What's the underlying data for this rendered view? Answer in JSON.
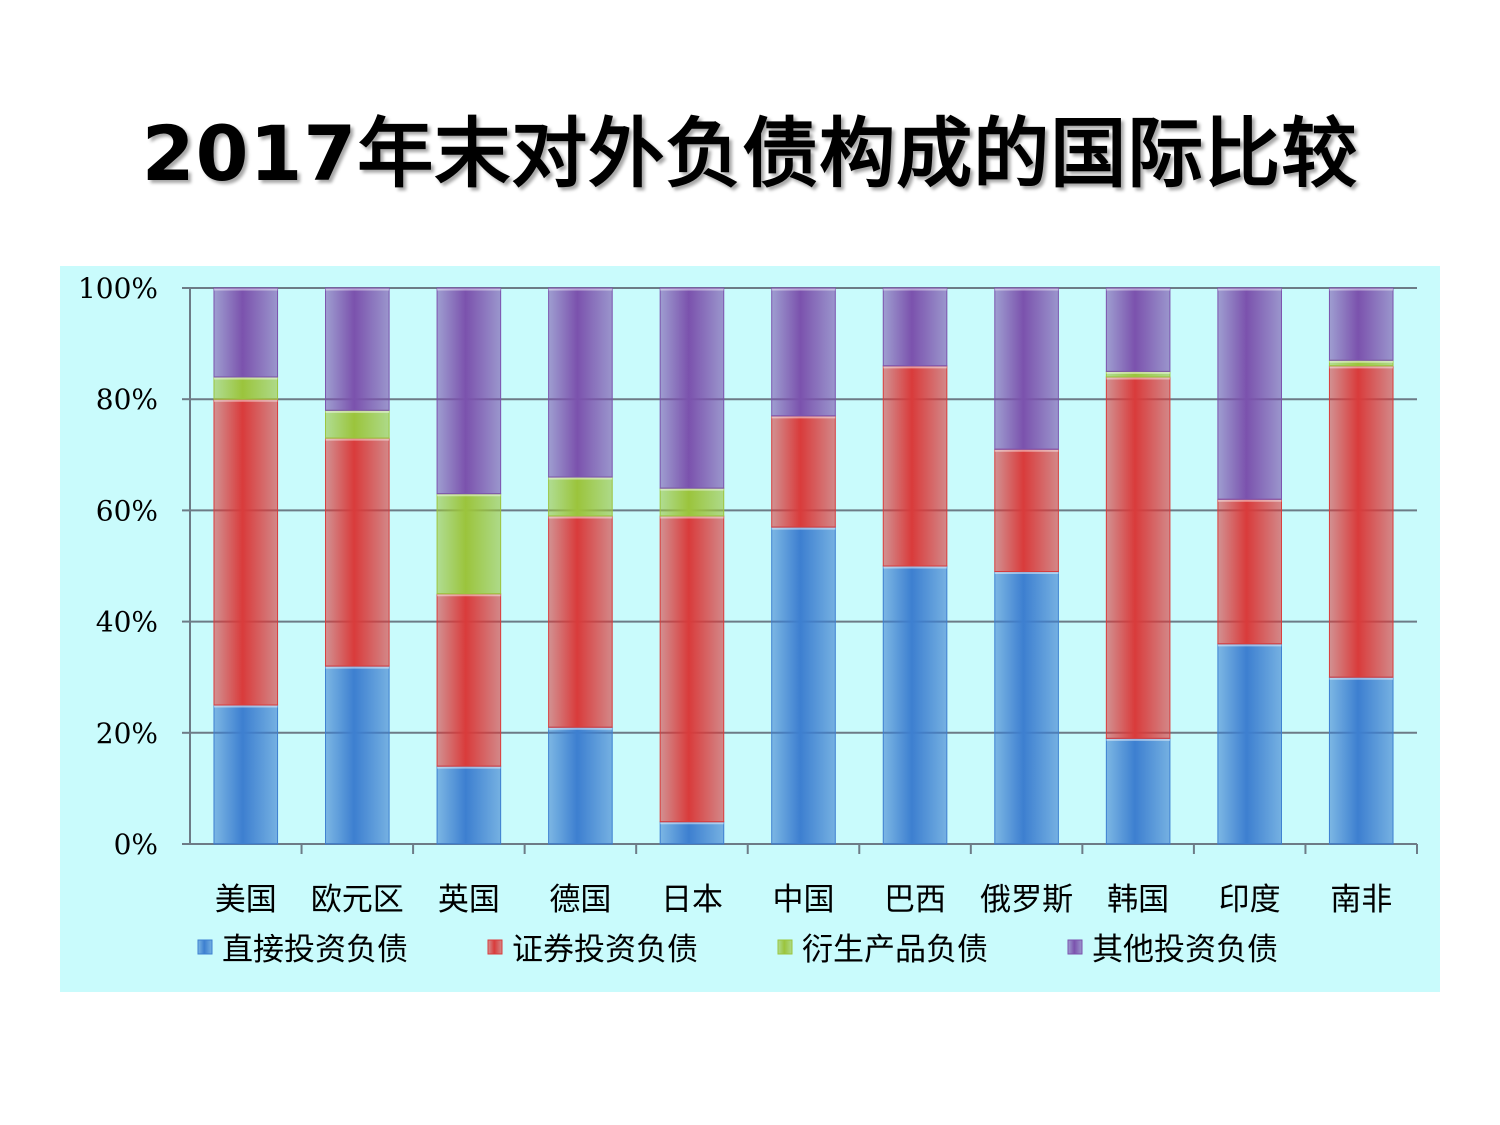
{
  "title": "2017年末对外负债构成的国际比较",
  "chart_data": {
    "type": "bar",
    "stacked": true,
    "categories": [
      "美国",
      "欧元区",
      "英国",
      "德国",
      "日本",
      "中国",
      "巴西",
      "俄罗斯",
      "韩国",
      "印度",
      "南非"
    ],
    "series": [
      {
        "name": "直接投资负债",
        "color": "#3d7fd0",
        "values": [
          25,
          32,
          14,
          21,
          4,
          57,
          50,
          49,
          19,
          36,
          30
        ]
      },
      {
        "name": "证券投资负债",
        "color": "#d93b3b",
        "values": [
          55,
          41,
          31,
          38,
          55,
          20,
          36,
          22,
          65,
          26,
          56
        ]
      },
      {
        "name": "衍生产品负债",
        "color": "#9bc43c",
        "values": [
          4,
          5,
          18,
          7,
          5,
          0,
          0,
          0,
          1,
          0,
          1
        ]
      },
      {
        "name": "其他投资负债",
        "color": "#7b52ad",
        "values": [
          16,
          22,
          37,
          34,
          36,
          23,
          14,
          29,
          15,
          38,
          13
        ]
      }
    ],
    "yticks": [
      "0%",
      "20%",
      "40%",
      "60%",
      "80%",
      "100%"
    ],
    "ylim": [
      0,
      100
    ],
    "grid": true,
    "legend_position": "bottom"
  }
}
